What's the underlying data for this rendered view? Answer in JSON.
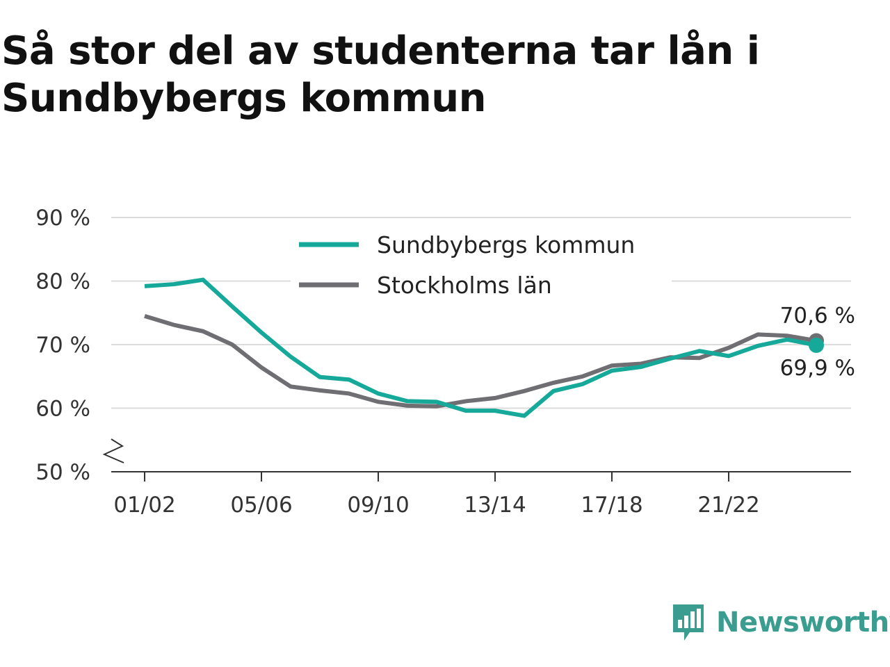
{
  "title": "Så stor del av studenterna tar lån i Sundbybergs kommun",
  "brand": {
    "name": "Newsworthy",
    "icon": "newsworthy-bar-chart-icon",
    "color": "#3a9d8f"
  },
  "chart_data": {
    "type": "line",
    "title": "Så stor del av studenterna tar lån i Sundbybergs kommun",
    "xlabel": "",
    "ylabel": "",
    "x": [
      "01/02",
      "02/03",
      "03/04",
      "04/05",
      "05/06",
      "06/07",
      "07/08",
      "08/09",
      "09/10",
      "10/11",
      "11/12",
      "12/13",
      "13/14",
      "14/15",
      "15/16",
      "16/17",
      "17/18",
      "18/19",
      "19/20",
      "20/21",
      "21/22",
      "22/23",
      "23/24",
      "24/25"
    ],
    "x_tick_labels": [
      "01/02",
      "05/06",
      "09/10",
      "13/14",
      "17/18",
      "21/22"
    ],
    "y_ticks": [
      50,
      60,
      70,
      80,
      90
    ],
    "y_tick_labels": [
      "50 %",
      "60 %",
      "70 %",
      "80 %",
      "90 %"
    ],
    "ylim": [
      50,
      90
    ],
    "y_axis_break": true,
    "grid": true,
    "legend_position": "top-center",
    "series": [
      {
        "name": "Sundbybergs kommun",
        "color": "#16a99a",
        "values": [
          79.2,
          79.5,
          80.2,
          76.0,
          71.9,
          68.1,
          64.9,
          64.5,
          62.3,
          61.1,
          61.0,
          59.6,
          59.6,
          58.8,
          62.7,
          63.8,
          65.9,
          66.5,
          67.8,
          69.0,
          68.2,
          69.8,
          70.8,
          69.9
        ],
        "end_label": "69,9 %"
      },
      {
        "name": "Stockholms län",
        "color": "#6f6e73",
        "values": [
          74.5,
          73.1,
          72.1,
          70.0,
          66.4,
          63.4,
          62.8,
          62.3,
          61.0,
          60.4,
          60.3,
          61.1,
          61.6,
          62.7,
          64.0,
          65.0,
          66.7,
          67.0,
          68.0,
          67.9,
          69.5,
          71.6,
          71.4,
          70.6
        ],
        "end_label": "70,6 %"
      }
    ]
  }
}
